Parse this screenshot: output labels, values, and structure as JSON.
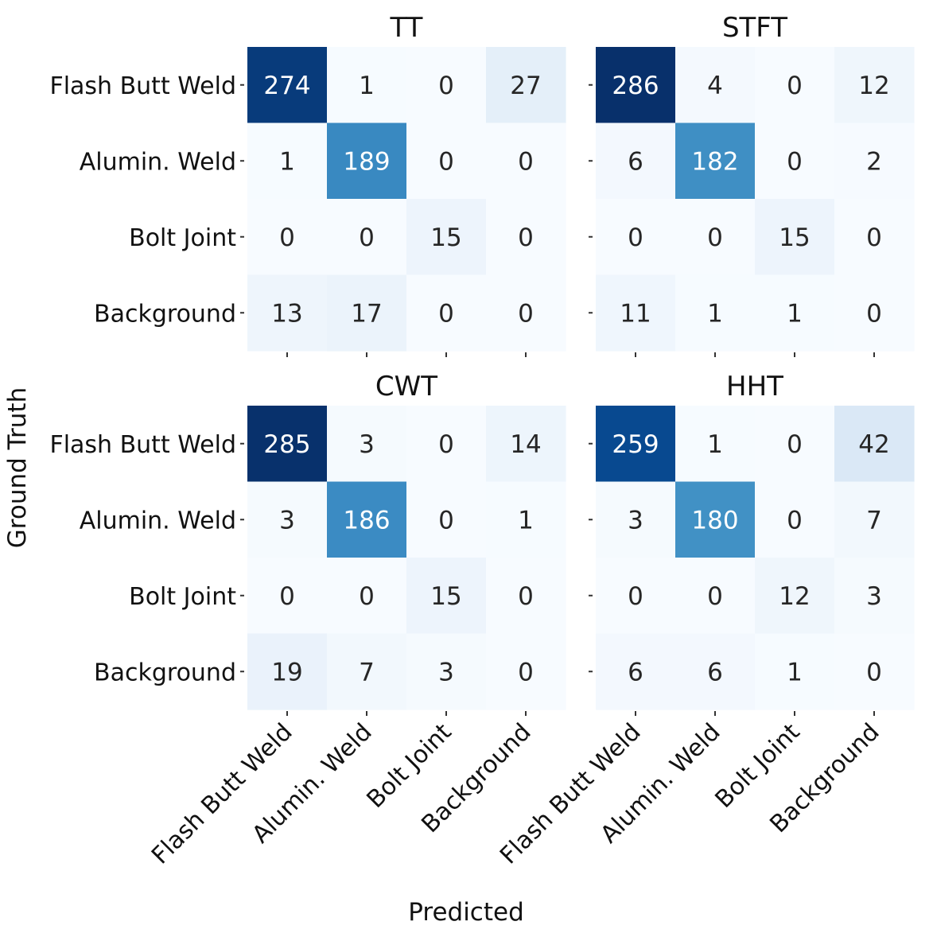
{
  "chart_data": {
    "type": "heatmap",
    "xlabel": "Predicted",
    "ylabel": "Ground Truth",
    "classes": [
      "Flash Butt Weld",
      "Alumin. Weld",
      "Bolt Joint",
      "Background"
    ],
    "colormap": "Blues",
    "panels": [
      {
        "title": "TT",
        "matrix": [
          [
            274,
            1,
            0,
            27
          ],
          [
            1,
            189,
            0,
            0
          ],
          [
            0,
            0,
            15,
            0
          ],
          [
            13,
            17,
            0,
            0
          ]
        ]
      },
      {
        "title": "STFT",
        "matrix": [
          [
            286,
            4,
            0,
            12
          ],
          [
            6,
            182,
            0,
            2
          ],
          [
            0,
            0,
            15,
            0
          ],
          [
            11,
            1,
            1,
            0
          ]
        ]
      },
      {
        "title": "CWT",
        "matrix": [
          [
            285,
            3,
            0,
            14
          ],
          [
            3,
            186,
            0,
            1
          ],
          [
            0,
            0,
            15,
            0
          ],
          [
            19,
            7,
            3,
            0
          ]
        ]
      },
      {
        "title": "HHT",
        "matrix": [
          [
            259,
            1,
            0,
            42
          ],
          [
            3,
            180,
            0,
            7
          ],
          [
            0,
            0,
            12,
            3
          ],
          [
            6,
            6,
            1,
            0
          ]
        ]
      }
    ]
  }
}
